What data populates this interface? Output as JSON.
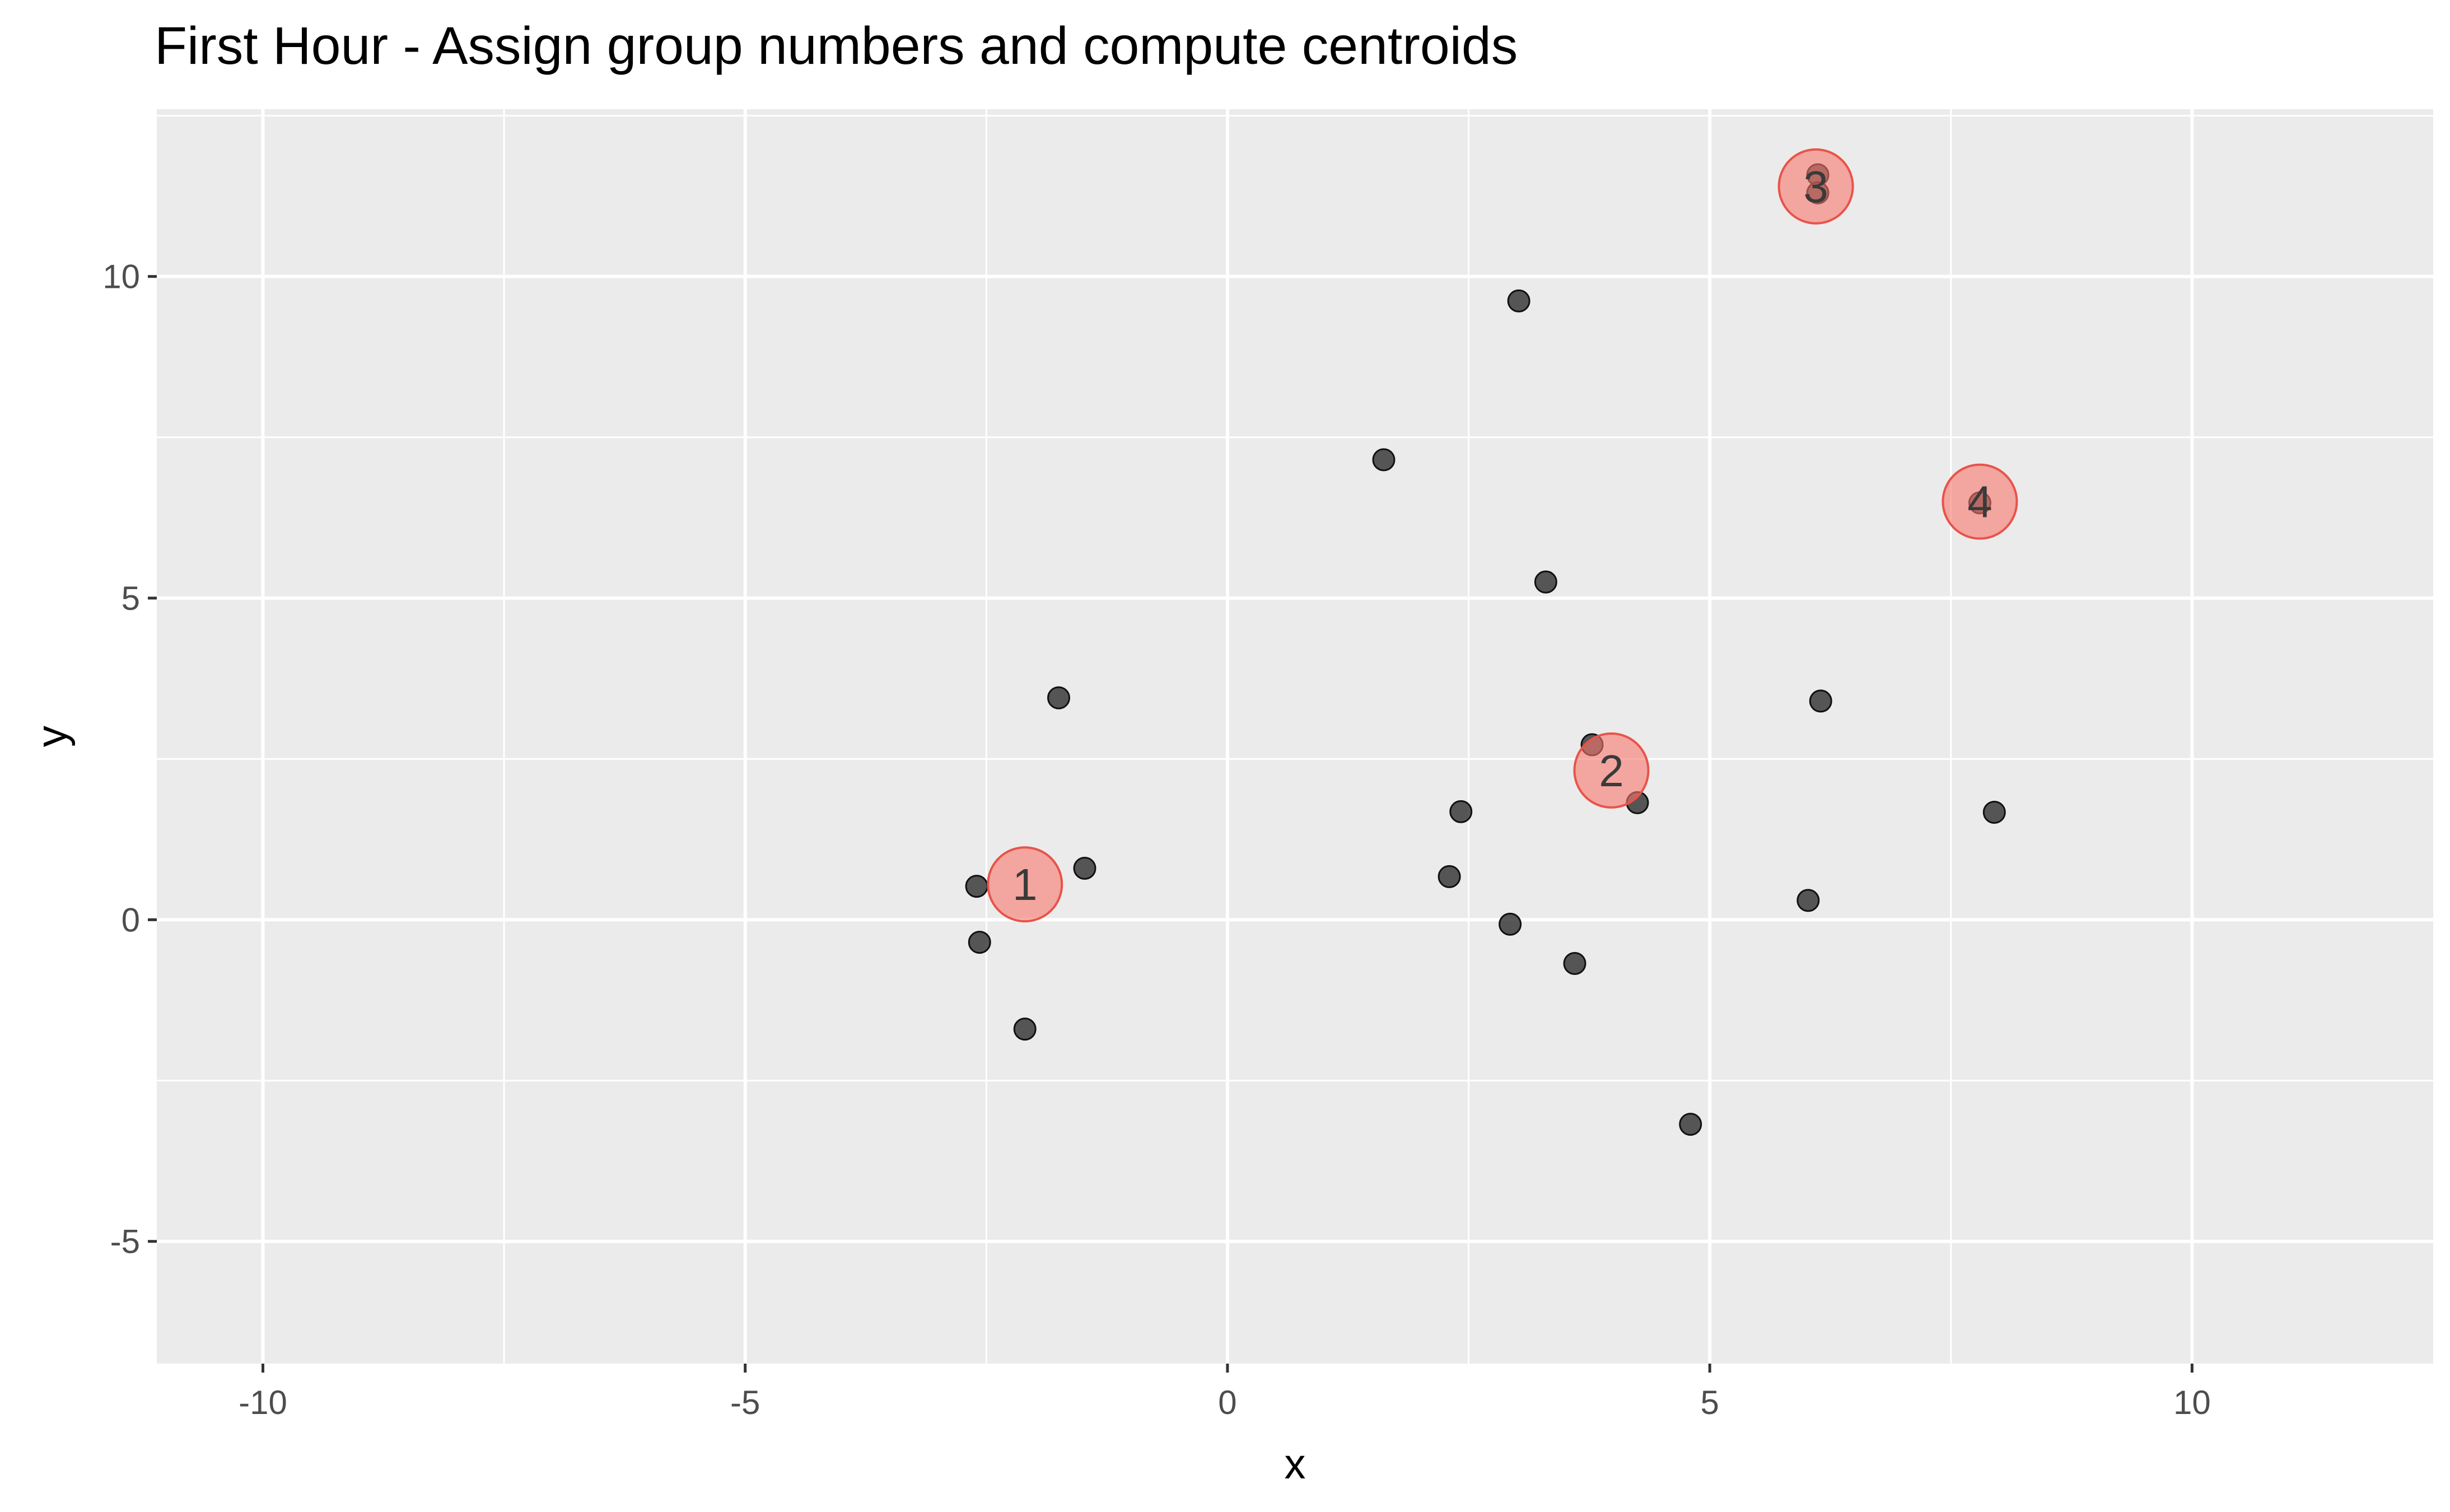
{
  "chart_data": {
    "type": "scatter",
    "title": "First Hour - Assign group numbers and compute centroids",
    "xlabel": "x",
    "ylabel": "y",
    "xlim": [
      -11.1,
      12.5
    ],
    "ylim": [
      -6.9,
      12.6
    ],
    "x_ticks": [
      -10,
      -5,
      0,
      5,
      10
    ],
    "y_ticks": [
      -5,
      0,
      5,
      10
    ],
    "x_tick_labels": [
      "-10",
      "-5",
      "0",
      "5",
      "10"
    ],
    "y_tick_labels": [
      "-5",
      "0",
      "5",
      "10"
    ],
    "grid": true,
    "background_color": "#ebebeb",
    "grid_color": "#ffffff",
    "point_color": "#333333",
    "centroid_color": "#f8766d",
    "points": [
      {
        "x": -2.6,
        "y": 0.52
      },
      {
        "x": -2.57,
        "y": -0.35
      },
      {
        "x": -2.1,
        "y": -1.7
      },
      {
        "x": -1.75,
        "y": 3.45
      },
      {
        "x": -1.48,
        "y": 0.8
      },
      {
        "x": 1.62,
        "y": 7.15
      },
      {
        "x": 2.3,
        "y": 0.67
      },
      {
        "x": 2.42,
        "y": 1.68
      },
      {
        "x": 2.93,
        "y": -0.07
      },
      {
        "x": 3.02,
        "y": 9.62
      },
      {
        "x": 3.3,
        "y": 5.25
      },
      {
        "x": 3.6,
        "y": -0.68
      },
      {
        "x": 3.78,
        "y": 2.72
      },
      {
        "x": 4.25,
        "y": 1.82
      },
      {
        "x": 4.8,
        "y": -3.18
      },
      {
        "x": 6.02,
        "y": 0.3
      },
      {
        "x": 6.12,
        "y": 11.58
      },
      {
        "x": 6.12,
        "y": 11.3
      },
      {
        "x": 6.15,
        "y": 3.4
      },
      {
        "x": 7.8,
        "y": 6.48
      },
      {
        "x": 7.95,
        "y": 1.67
      }
    ],
    "centroids": [
      {
        "label": "1",
        "x": -2.1,
        "y": 0.55
      },
      {
        "label": "2",
        "x": 3.98,
        "y": 2.32
      },
      {
        "label": "3",
        "x": 6.1,
        "y": 11.4
      },
      {
        "label": "4",
        "x": 7.8,
        "y": 6.5
      }
    ]
  }
}
